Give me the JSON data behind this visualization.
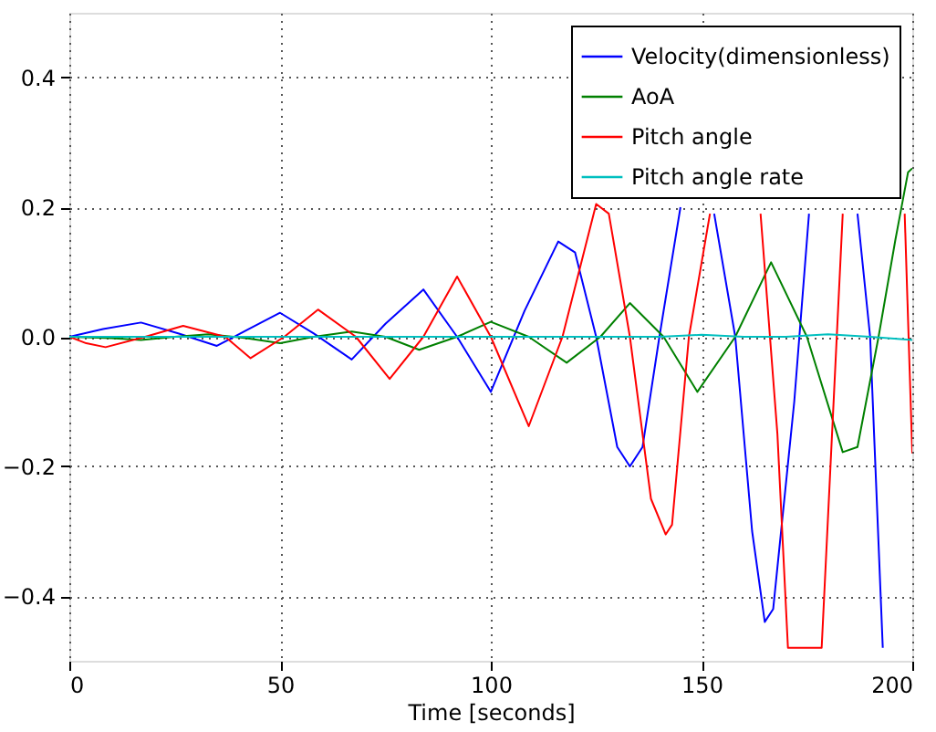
{
  "chart_data": {
    "type": "line",
    "xlabel": "Time [seconds]",
    "xlim": [
      0,
      200
    ],
    "xticks": [
      0,
      50,
      100,
      150,
      200
    ],
    "ylim": [
      -0.5,
      0.5
    ],
    "yticks": [
      {
        "value": -0.4,
        "label": "−0.4"
      },
      {
        "value": -0.2,
        "label": "−0.2"
      },
      {
        "value": 0,
        "label": "0.0"
      },
      {
        "value": 0.2,
        "label": "0.2"
      },
      {
        "value": 0.4,
        "label": "0.4"
      }
    ],
    "grid": true,
    "legend": "top right",
    "line_style": "solid",
    "series": [
      {
        "name": "Velocity(dimensionless)",
        "color": "#0000ff",
        "x": [
          0,
          8,
          17,
          26,
          35,
          42,
          50,
          58,
          67,
          75,
          84,
          92,
          100,
          108,
          116,
          120,
          125,
          130,
          133,
          136,
          140,
          145,
          150,
          153,
          158,
          162,
          165,
          167,
          172,
          175.5,
          181,
          187,
          190,
          193
        ],
        "values": [
          0,
          0.012,
          0.022,
          0.005,
          -0.014,
          0.01,
          0.037,
          0.005,
          -0.035,
          0.02,
          0.073,
          0,
          -0.085,
          0.04,
          0.147,
          0.13,
          0,
          -0.17,
          -0.2,
          -0.17,
          0,
          0.2,
          null,
          0.19,
          0,
          -0.3,
          -0.44,
          -0.42,
          -0.1,
          0.19,
          null,
          0.19,
          0,
          -0.48
        ]
      },
      {
        "name": "AoA",
        "color": "#008000",
        "x": [
          0,
          10,
          17,
          25,
          33,
          42,
          50,
          58,
          67,
          75,
          83,
          92,
          100,
          109,
          118,
          126,
          133,
          141,
          149,
          158,
          166.5,
          175,
          183.5,
          187,
          192,
          196,
          199,
          200
        ],
        "values": [
          0,
          -0.002,
          -0.005,
          0,
          0.004,
          -0.002,
          -0.01,
          0,
          0.008,
          0,
          -0.02,
          0,
          0.023,
          0,
          -0.04,
          0,
          0.052,
          0,
          -0.085,
          0,
          0.115,
          0,
          -0.178,
          -0.17,
          0,
          0.15,
          0.254,
          0.26
        ]
      },
      {
        "name": "Pitch angle",
        "color": "#ff0000",
        "x": [
          0,
          4,
          8.6,
          18,
          27,
          37,
          43,
          51,
          59,
          68,
          76,
          84,
          92,
          100,
          109,
          117,
          125,
          128,
          133,
          138,
          141.5,
          143,
          147,
          152,
          160,
          164,
          168,
          170.5,
          178.5,
          183.5,
          190,
          198.2,
          200
        ],
        "values": [
          0,
          -0.01,
          -0.016,
          0,
          0.017,
          0,
          -0.033,
          0,
          0.042,
          0,
          -0.065,
          0,
          0.093,
          0,
          -0.138,
          0,
          0.205,
          0.19,
          0,
          -0.25,
          -0.305,
          -0.29,
          0,
          0.19,
          null,
          0.19,
          -0.15,
          -0.48,
          -0.48,
          0.19,
          null,
          0.19,
          -0.18
        ]
      },
      {
        "name": "Pitch angle rate",
        "color": "#00bfbf",
        "x": [
          0,
          25,
          50,
          75,
          100,
          125,
          140,
          150,
          160,
          170,
          180,
          190,
          200
        ],
        "values": [
          0,
          0,
          0,
          0,
          0,
          0,
          0,
          0.003,
          0,
          0,
          0.004,
          0,
          -0.005
        ]
      }
    ]
  }
}
